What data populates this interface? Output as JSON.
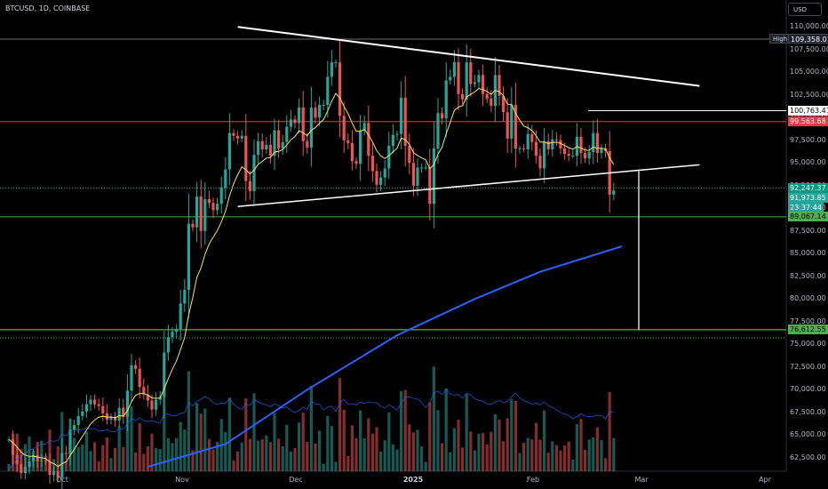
{
  "symbol_text": "BTCUSD, 1D, COINBASE",
  "currency_button": "USD",
  "price_scale": {
    "min": 61500,
    "max": 111500,
    "ticks": [
      "110,000.00",
      "107,500.00",
      "105,000.00",
      "102,500.00",
      "100,000.00",
      "97,500.00",
      "95,000.00",
      "92,500.00",
      "90,000.00",
      "87,500.00",
      "85,000.00",
      "82,500.00",
      "80,000.00",
      "77,500.00",
      "75,000.00",
      "72,500.00",
      "70,000.00",
      "67,500.00",
      "65,000.00",
      "62,500.00"
    ]
  },
  "time_axis": [
    {
      "label": "Oct",
      "bold": false
    },
    {
      "label": "Nov",
      "bold": false
    },
    {
      "label": "Dec",
      "bold": false
    },
    {
      "label": "2025",
      "bold": true
    },
    {
      "label": "Feb",
      "bold": false
    },
    {
      "label": "Mar",
      "bold": false
    },
    {
      "label": "Apr",
      "bold": false
    }
  ],
  "price_labels": {
    "high_key": "High",
    "high_value": "109,358.01",
    "level_white": "100,763.41",
    "level_red": "99,563.68",
    "last_green": "92,247.37",
    "current": "91,973.85",
    "countdown": "23:37:44",
    "support_1": "89,067.14",
    "support_2": "76,612.55"
  },
  "colors": {
    "background": "#000000",
    "up": "#26a69a",
    "down": "#ef5350",
    "ema": "#f5e663",
    "ma200": "#2962ff",
    "trendline": "#ffffff",
    "resistance": "#f23645",
    "support": "#4caf50"
  },
  "chart_data": {
    "type": "candlestick",
    "title": "",
    "xlabel": "",
    "ylabel": "",
    "ylim": [
      61500,
      111500
    ],
    "grid": false,
    "series_desc": "BTCUSD daily candles approx. 28 Sep 2024 to 25 Feb 2025, each close listed (thousands USD)",
    "closes_k": [
      64.5,
      62.8,
      61.8,
      60.8,
      61.5,
      62.1,
      62.8,
      62.1,
      62.2,
      62.1,
      60.6,
      61.0,
      60.3,
      63.0,
      62.9,
      65.6,
      66.1,
      67.1,
      67.6,
      68.4,
      68.9,
      68.4,
      68.2,
      67.4,
      66.7,
      67.0,
      66.6,
      68.0,
      67.0,
      69.9,
      72.7,
      72.3,
      70.3,
      69.5,
      68.8,
      67.8,
      68.9,
      69.2,
      74.1,
      75.8,
      76.4,
      76.7,
      79.5,
      81.0,
      88.3,
      87.9,
      91.3,
      87.5,
      91.0,
      90.6,
      89.8,
      90.5,
      92.3,
      94.3,
      98.3,
      98.0,
      97.7,
      98.0,
      93.0,
      91.9,
      95.9,
      97.4,
      96.5,
      97.0,
      95.8,
      98.6,
      96.6,
      97.3,
      99.0,
      99.8,
      99.4,
      101.1,
      97.4,
      96.7,
      101.1,
      100.0,
      101.4,
      101.4,
      104.5,
      106.1,
      106.1,
      100.2,
      97.5,
      97.2,
      95.2,
      94.9,
      98.6,
      99.4,
      95.8,
      94.1,
      92.6,
      93.4,
      94.4,
      96.9,
      98.1,
      98.2,
      102.2,
      96.9,
      95.0,
      92.5,
      94.5,
      94.5,
      94.5,
      90.5,
      96.6,
      100.5,
      99.9,
      104.1,
      104.5,
      106.1,
      102.6,
      102.0,
      106.1,
      103.7,
      103.9,
      104.7,
      102.6,
      102.1,
      101.3,
      104.7,
      102.4,
      100.6,
      97.7,
      101.4,
      96.6,
      96.6,
      96.5,
      98.2,
      97.3,
      95.8,
      94.4,
      97.4,
      96.5,
      97.6,
      97.5,
      96.6,
      96.0,
      95.8,
      95.8,
      97.9,
      96.1,
      95.5,
      96.2,
      98.3,
      96.1,
      96.6,
      96.3,
      91.5,
      91.97
    ],
    "overlays": [
      {
        "name": "",
        "type": "ema",
        "color": "#f5e663"
      },
      {
        "name": "",
        "type": "moving-average-long",
        "color": "#2962ff",
        "points": [
          {
            "date": "2024-11-01",
            "value": 61.5
          },
          {
            "date": "2024-11-20",
            "value": 64.0
          },
          {
            "date": "2024-12-10",
            "value": 70.0
          },
          {
            "date": "2025-01-01",
            "value": 76.0
          },
          {
            "date": "2025-01-20",
            "value": 80.0
          },
          {
            "date": "2025-02-05",
            "value": 83.0
          },
          {
            "date": "2025-02-25",
            "value": 85.8
          }
        ]
      }
    ],
    "volume_panel": true,
    "drawings": [
      {
        "kind": "descending-trendline",
        "from": {
          "date": "2024-11-23",
          "price": 110.0
        },
        "to": {
          "date": "2025-03-16",
          "price": 103.5
        }
      },
      {
        "kind": "ascending-trendline",
        "from": {
          "date": "2024-11-23",
          "price": 90.2
        },
        "to": {
          "date": "2025-03-16",
          "price": 94.8
        }
      },
      {
        "kind": "horizontal-level",
        "price": 100.76
      },
      {
        "kind": "horizontal-level",
        "price": 99.56
      },
      {
        "kind": "horizontal-level",
        "price": 89.07
      },
      {
        "kind": "horizontal-level",
        "price": 76.61
      },
      {
        "kind": "measure-projection",
        "from_price": 94.3,
        "to_price": 76.6
      }
    ]
  }
}
